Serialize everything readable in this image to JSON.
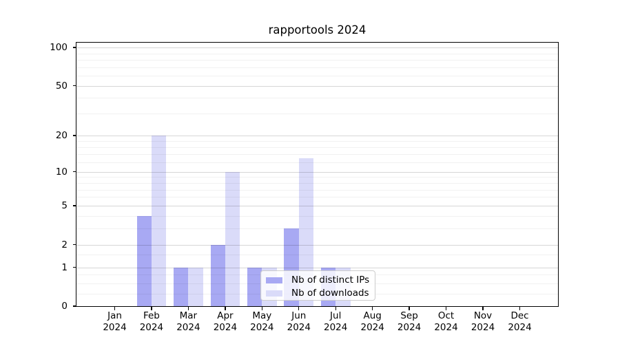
{
  "chart_data": {
    "type": "bar",
    "title": "rapportools 2024",
    "categories": [
      "Jan 2024",
      "Feb 2024",
      "Mar 2024",
      "Apr 2024",
      "May 2024",
      "Jun 2024",
      "Jul 2024",
      "Aug 2024",
      "Sep 2024",
      "Oct 2024",
      "Nov 2024",
      "Dec 2024"
    ],
    "series": [
      {
        "name": "Nb of distinct IPs",
        "color": "#a8a9f3",
        "values": [
          0,
          4,
          1,
          2,
          1,
          3,
          1,
          0,
          0,
          0,
          0,
          0
        ]
      },
      {
        "name": "Nb of downloads",
        "color": "#dadbf9",
        "values": [
          0,
          20,
          1,
          10,
          1,
          13,
          1,
          0,
          0,
          0,
          0,
          0
        ]
      }
    ],
    "y_axis": {
      "scale": "log1p",
      "min": 0,
      "max": 109,
      "ticks": [
        0,
        1,
        2,
        5,
        10,
        20,
        50,
        100
      ],
      "minor_gridlines": [
        0.25,
        0.5,
        0.75,
        1.5,
        3,
        4,
        6,
        7,
        8,
        9,
        12,
        14,
        16,
        18,
        30,
        40,
        60,
        70,
        80,
        90
      ]
    },
    "grid": true,
    "legend_position": "lower center inside"
  }
}
